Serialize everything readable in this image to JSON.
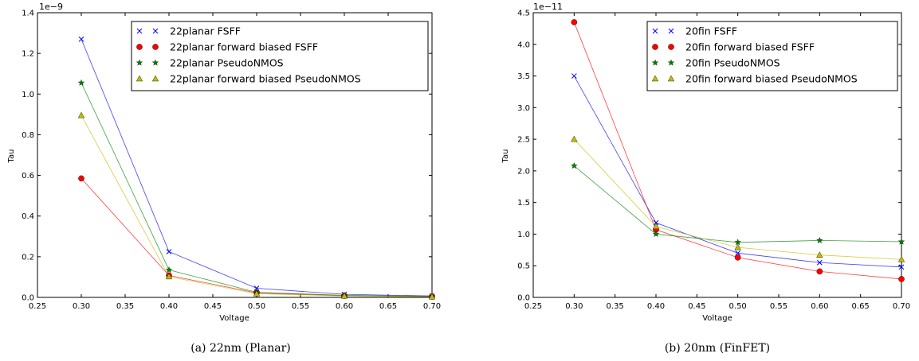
{
  "chart_data": [
    {
      "type": "line",
      "caption": "(a) 22nm (Planar)",
      "xlabel": "Voltage",
      "ylabel": "Tau",
      "multiplier": "1e−9",
      "xlim": [
        0.25,
        0.7
      ],
      "ylim": [
        0.0,
        1.4
      ],
      "xticks": [
        "0.25",
        "0.30",
        "0.35",
        "0.40",
        "0.45",
        "0.50",
        "0.55",
        "0.60",
        "0.65",
        "0.70"
      ],
      "yticks": [
        "0.0",
        "0.2",
        "0.4",
        "0.6",
        "0.8",
        "1.0",
        "1.2",
        "1.4"
      ],
      "legend_position": "top-right",
      "x": [
        0.3,
        0.4,
        0.5,
        0.6,
        0.7
      ],
      "series": [
        {
          "name": "22planar FSFF",
          "color": "#0000ff",
          "marker": "x",
          "values": [
            1.27,
            0.225,
            0.045,
            0.015,
            0.007
          ]
        },
        {
          "name": "22planar forward biased FSFF",
          "color": "#ff0000",
          "marker": "circle",
          "values": [
            0.585,
            0.108,
            0.022,
            0.008,
            0.004
          ]
        },
        {
          "name": "22planar PseudoNMOS",
          "color": "#008000",
          "marker": "star",
          "values": [
            1.055,
            0.135,
            0.025,
            0.01,
            0.005
          ]
        },
        {
          "name": "22planar forward biased PseudoNMOS",
          "color": "#bfbf00",
          "marker": "triangle",
          "values": [
            0.895,
            0.102,
            0.018,
            0.007,
            0.003
          ]
        }
      ]
    },
    {
      "type": "line",
      "caption": "(b) 20nm (FinFET)",
      "xlabel": "Voltage",
      "ylabel": "Tau",
      "multiplier": "1e−11",
      "xlim": [
        0.25,
        0.7
      ],
      "ylim": [
        0.0,
        4.5
      ],
      "xticks": [
        "0.25",
        "0.30",
        "0.35",
        "0.40",
        "0.45",
        "0.50",
        "0.55",
        "0.60",
        "0.65",
        "0.70"
      ],
      "yticks": [
        "0.0",
        "0.5",
        "1.0",
        "1.5",
        "2.0",
        "2.5",
        "3.0",
        "3.5",
        "4.0",
        "4.5"
      ],
      "legend_position": "top-right",
      "x": [
        0.3,
        0.4,
        0.5,
        0.6,
        0.7
      ],
      "series": [
        {
          "name": "20fin FSFF",
          "color": "#0000ff",
          "marker": "x",
          "values": [
            3.5,
            1.18,
            0.7,
            0.55,
            0.48
          ]
        },
        {
          "name": "20fin forward biased FSFF",
          "color": "#ff0000",
          "marker": "circle",
          "values": [
            4.35,
            1.07,
            0.63,
            0.41,
            0.29
          ]
        },
        {
          "name": "20fin PseudoNMOS",
          "color": "#008000",
          "marker": "star",
          "values": [
            2.08,
            1.0,
            0.87,
            0.9,
            0.88
          ]
        },
        {
          "name": "20fin forward biased PseudoNMOS",
          "color": "#bfbf00",
          "marker": "triangle",
          "values": [
            2.5,
            1.12,
            0.79,
            0.67,
            0.6
          ]
        }
      ]
    }
  ]
}
